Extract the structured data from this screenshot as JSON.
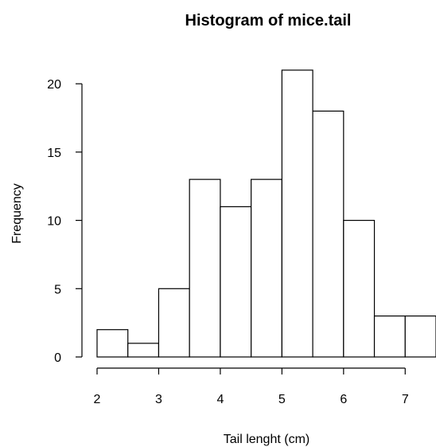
{
  "chart_data": {
    "type": "bar",
    "title": "Histogram of mice.tail",
    "xlabel": "Tail lenght (cm)",
    "ylabel": "Frequency",
    "bin_edges": [
      2,
      2.5,
      3,
      3.5,
      4,
      4.5,
      5,
      5.5,
      6,
      6.5,
      7,
      7.5
    ],
    "values": [
      2,
      1,
      5,
      13,
      11,
      13,
      21,
      18,
      10,
      3,
      3
    ],
    "xlim": [
      2,
      7.5
    ],
    "ylim": [
      0,
      21
    ],
    "x_ticks": [
      2,
      3,
      4,
      5,
      6,
      7
    ],
    "y_ticks": [
      0,
      5,
      10,
      15,
      20
    ],
    "grid": false,
    "legend": "none",
    "colors": {
      "bar_fill": "#ffffff",
      "bar_stroke": "#000000"
    }
  }
}
